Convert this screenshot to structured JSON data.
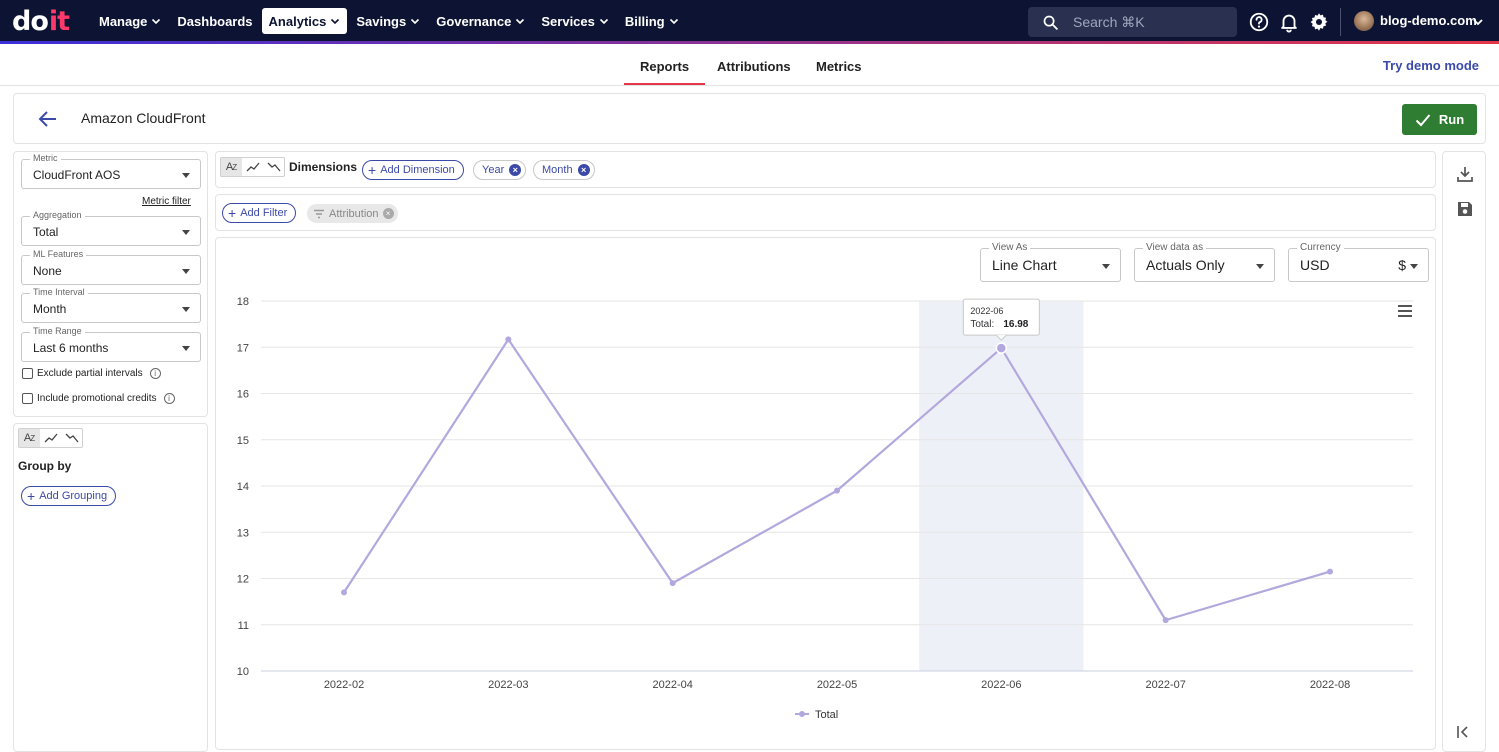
{
  "nav": {
    "logo_left": "do",
    "logo_right": "it",
    "items": [
      {
        "label": "Manage",
        "chevron": true,
        "active": false
      },
      {
        "label": "Dashboards",
        "chevron": false,
        "active": false
      },
      {
        "label": "Analytics",
        "chevron": true,
        "active": true
      },
      {
        "label": "Savings",
        "chevron": true,
        "active": false
      },
      {
        "label": "Governance",
        "chevron": true,
        "active": false
      },
      {
        "label": "Services",
        "chevron": true,
        "active": false
      },
      {
        "label": "Billing",
        "chevron": true,
        "active": false
      }
    ],
    "search_placeholder": "Search ⌘K",
    "account": "blog-demo.com",
    "icons": [
      "search-icon",
      "help-icon",
      "bell-icon",
      "gear-icon",
      "avatar",
      "chevron-down-icon"
    ]
  },
  "subnav": {
    "tabs": [
      {
        "label": "Reports",
        "active": true
      },
      {
        "label": "Attributions",
        "active": false
      },
      {
        "label": "Metrics",
        "active": false
      }
    ],
    "demo_link": "Try demo mode"
  },
  "header": {
    "title": "Amazon CloudFront",
    "run_label": "Run"
  },
  "left": {
    "metric": {
      "label": "Metric",
      "value": "CloudFront AOS"
    },
    "metric_filter": "Metric filter",
    "aggregation": {
      "label": "Aggregation",
      "value": "Total"
    },
    "ml": {
      "label": "ML Features",
      "value": "None"
    },
    "interval": {
      "label": "Time Interval",
      "value": "Month"
    },
    "range": {
      "label": "Time Range",
      "value": "Last 6 months"
    },
    "exclude_partial": "Exclude partial intervals",
    "include_credits": "Include promotional credits",
    "group_by": "Group by",
    "add_grouping": "Add Grouping"
  },
  "dimensions": {
    "label": "Dimensions",
    "add": "Add Dimension",
    "chips": [
      "Year",
      "Month"
    ]
  },
  "filters": {
    "add": "Add Filter",
    "attribution": "Attribution"
  },
  "view": {
    "view_as": {
      "label": "View As",
      "value": "Line Chart"
    },
    "view_data": {
      "label": "View data as",
      "value": "Actuals Only"
    },
    "currency": {
      "label": "Currency",
      "value": "USD",
      "symbol": "$"
    }
  },
  "chart_data": {
    "type": "line",
    "categories": [
      "2022-02",
      "2022-03",
      "2022-04",
      "2022-05",
      "2022-06",
      "2022-07",
      "2022-08"
    ],
    "series": [
      {
        "name": "Total",
        "values": [
          11.7,
          17.17,
          11.9,
          13.9,
          16.98,
          11.1,
          12.15
        ],
        "color": "#b3a8de"
      }
    ],
    "ylim": [
      10,
      18
    ],
    "yticks": [
      10,
      11,
      12,
      13,
      14,
      15,
      16,
      17,
      18
    ],
    "grid": true,
    "legend": "bottom-center",
    "highlight_index": 4,
    "tooltip": {
      "title": "2022-06",
      "label": "Total:",
      "value": "16.98"
    }
  }
}
